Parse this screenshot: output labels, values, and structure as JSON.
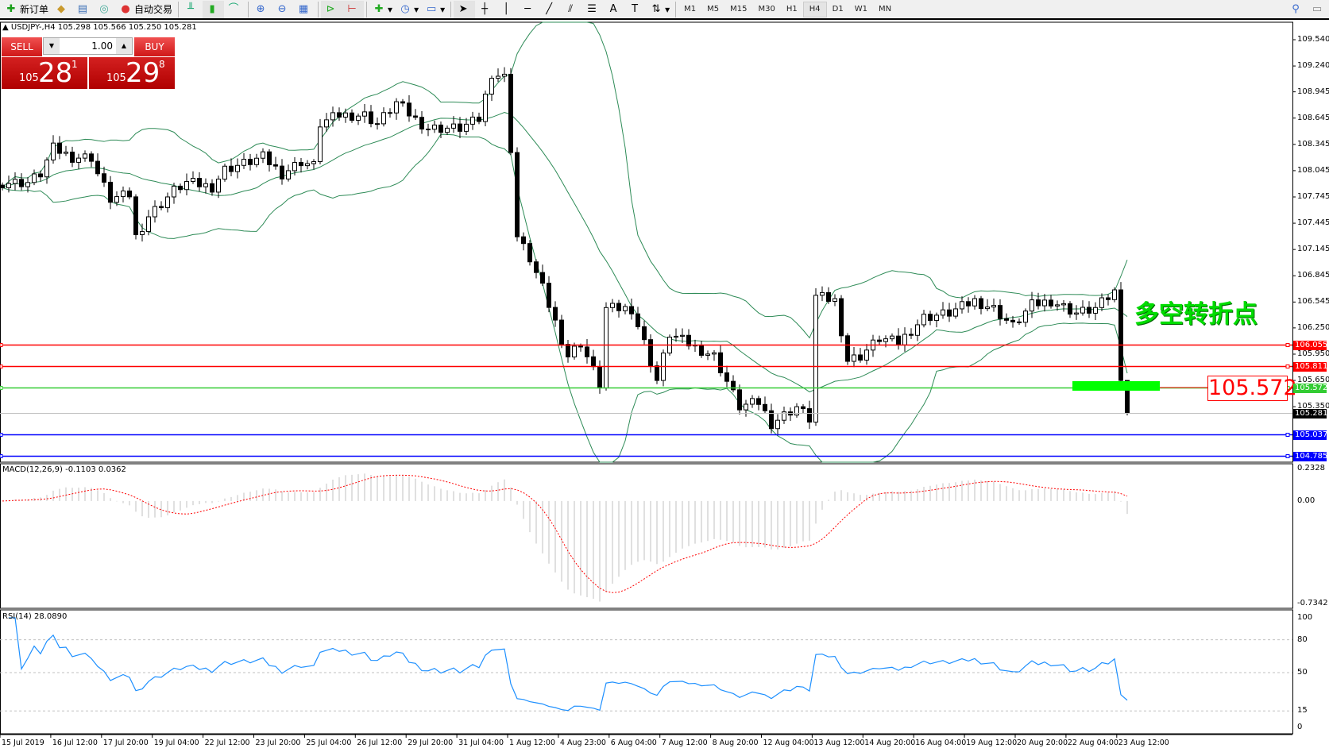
{
  "toolbar": {
    "new_order": "新订单",
    "auto_trading": "自动交易",
    "timeframes": [
      "M1",
      "M5",
      "M15",
      "M30",
      "H1",
      "H4",
      "D1",
      "W1",
      "MN"
    ],
    "selected_timeframe": "H4"
  },
  "header": {
    "symbol_info": "USDJPY-,H4  105.298 105.566 105.250 105.281"
  },
  "one_click": {
    "sell_label": "SELL",
    "buy_label": "BUY",
    "volume": "1.00",
    "sell_big": "105",
    "sell_main": "28",
    "sell_sup": "1",
    "buy_big": "105",
    "buy_main": "29",
    "buy_sup": "8"
  },
  "annotation": {
    "text": "多空转折点",
    "price_box": "105.572"
  },
  "price_axis": {
    "ticks": [
      "109.540",
      "109.240",
      "108.945",
      "108.645",
      "108.345",
      "108.045",
      "107.745",
      "107.445",
      "107.145",
      "106.845",
      "106.545",
      "106.250",
      "105.950",
      "105.650",
      "105.350"
    ],
    "range": [
      104.75,
      109.72
    ]
  },
  "levels": [
    {
      "price": "106.055",
      "color": "#ff0000"
    },
    {
      "price": "105.811",
      "color": "#ff0000"
    },
    {
      "price": "105.572",
      "color": "#33cc33"
    },
    {
      "price": "105.281",
      "color": "#000000",
      "line": "#c0c0c0"
    },
    {
      "price": "105.037",
      "color": "#0000ff"
    },
    {
      "price": "104.785",
      "color": "#0000ff"
    }
  ],
  "macd": {
    "label": "MACD(12,26,9) -0.1103 0.0362",
    "ticks": [
      "0.2328",
      "0.00",
      "-0.7342"
    ],
    "range": [
      -0.7342,
      0.2328
    ]
  },
  "rsi": {
    "label": "RSI(14) 28.0890",
    "ticks": [
      "100",
      "80",
      "50",
      "15",
      "0"
    ]
  },
  "x_axis": [
    "15 Jul 2019",
    "16 Jul 12:00",
    "17 Jul 20:00",
    "19 Jul 04:00",
    "22 Jul 12:00",
    "23 Jul 20:00",
    "25 Jul 04:00",
    "26 Jul 12:00",
    "29 Jul 20:00",
    "31 Jul 04:00",
    "1 Aug 12:00",
    "4 Aug 23:00",
    "6 Aug 04:00",
    "7 Aug 12:00",
    "8 Aug 20:00",
    "12 Aug 04:00",
    "13 Aug 12:00",
    "14 Aug 20:00",
    "16 Aug 04:00",
    "19 Aug 12:00",
    "20 Aug 20:00",
    "22 Aug 04:00",
    "23 Aug 12:00"
  ],
  "chart_data": {
    "type": "candlestick",
    "symbol": "USDJPY",
    "timeframe": "H4",
    "close_path": [
      [
        0,
        107.91
      ],
      [
        4,
        107.91
      ],
      [
        6,
        108.01
      ],
      [
        8,
        108.3
      ],
      [
        11,
        108.2
      ],
      [
        14,
        108.2
      ],
      [
        15,
        108.01
      ],
      [
        17,
        107.72
      ],
      [
        20,
        107.77
      ],
      [
        21,
        107.29
      ],
      [
        23,
        107.53
      ],
      [
        25,
        107.67
      ],
      [
        27,
        107.82
      ],
      [
        29,
        107.91
      ],
      [
        33,
        107.86
      ],
      [
        35,
        108.06
      ],
      [
        39,
        108.15
      ],
      [
        41,
        108.2
      ],
      [
        44,
        108.01
      ],
      [
        47,
        108.15
      ],
      [
        49,
        108.1
      ],
      [
        50,
        108.58
      ],
      [
        53,
        108.68
      ],
      [
        57,
        108.68
      ],
      [
        59,
        108.58
      ],
      [
        62,
        108.82
      ],
      [
        65,
        108.63
      ],
      [
        67,
        108.53
      ],
      [
        72,
        108.53
      ],
      [
        75,
        108.63
      ],
      [
        77,
        109.16
      ],
      [
        79,
        109.11
      ],
      [
        80,
        108.3
      ],
      [
        81,
        107.29
      ],
      [
        83,
        107.04
      ],
      [
        85,
        106.7
      ],
      [
        89,
        105.93
      ],
      [
        91,
        106.08
      ],
      [
        94,
        105.6
      ],
      [
        95,
        106.47
      ],
      [
        99,
        106.47
      ],
      [
        101,
        106.08
      ],
      [
        103,
        105.65
      ],
      [
        105,
        106.18
      ],
      [
        109,
        106.03
      ],
      [
        112,
        105.93
      ],
      [
        116,
        105.35
      ],
      [
        119,
        105.4
      ],
      [
        121,
        105.16
      ],
      [
        125,
        105.35
      ],
      [
        127,
        105.21
      ],
      [
        128,
        106.61
      ],
      [
        131,
        106.56
      ],
      [
        133,
        105.88
      ],
      [
        135,
        105.93
      ],
      [
        138,
        106.13
      ],
      [
        141,
        106.08
      ],
      [
        145,
        106.37
      ],
      [
        149,
        106.42
      ],
      [
        153,
        106.56
      ],
      [
        156,
        106.47
      ],
      [
        159,
        106.27
      ],
      [
        162,
        106.51
      ],
      [
        165,
        106.56
      ],
      [
        169,
        106.42
      ],
      [
        172,
        106.47
      ],
      [
        175,
        106.66
      ],
      [
        176,
        105.65
      ],
      [
        177,
        105.281
      ]
    ],
    "last_ohlc": {
      "open": 105.298,
      "high": 105.566,
      "low": 105.25,
      "close": 105.281
    },
    "indicators": [
      "Bollinger Bands(20,2)",
      "MACD(12,26,9)",
      "RSI(14)"
    ]
  },
  "colors": {
    "bull": "#ffffff",
    "bear": "#000000",
    "bands": "#2e8b57",
    "macd_hist": "#c0c0c0",
    "macd_signal": "#ff0000",
    "rsi": "#1e90ff"
  }
}
